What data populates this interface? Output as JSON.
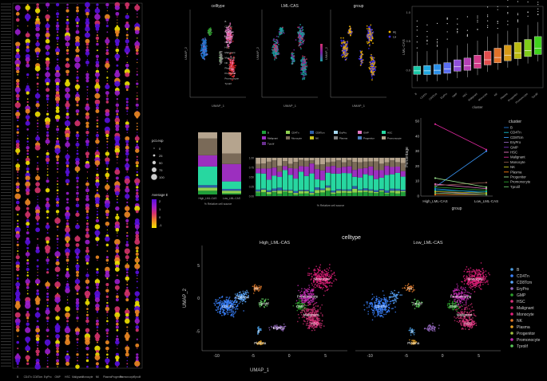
{
  "palette": {
    "background": "#000000",
    "cluster_colors": [
      "#1f77d4",
      "#17becf",
      "#3b83ff",
      "#9467bd",
      "#2ca02c",
      "#8c564b",
      "#e377c2",
      "#7f7f7f",
      "#c7c31f",
      "#d62728",
      "#98df8a",
      "#ff9f1c",
      "#f781bf",
      "#66c2a5"
    ],
    "dot_gradient": [
      "#f2e400",
      "#f08a24",
      "#d6336c",
      "#9b1dcc",
      "#5a0fe0"
    ]
  },
  "clusters": [
    "B",
    "CD4Tn",
    "CD8Tcm",
    "EryPro",
    "GMP",
    "HSC",
    "Malignant",
    "Monocyte",
    "NK",
    "Plasma",
    "Progenitor",
    "Promonocyte",
    "Tprolif"
  ],
  "dotplot": {
    "x_labels": [
      "B",
      "CD4Tn",
      "CD8Tcm",
      "EryPro",
      "GMP",
      "HSC",
      "Malignant",
      "Monocyte",
      "NK",
      "Plasma",
      "Progenitor",
      "Promonocyte",
      "Tprolif"
    ],
    "legend_size_title": "pct.exp",
    "size_levels": [
      "0",
      "25",
      "50",
      "75",
      "100"
    ],
    "legend_color_title": "Average Expression",
    "color_levels": [
      "2",
      "1",
      "0",
      "-1"
    ]
  },
  "umap_small": {
    "titles": [
      "celltype",
      "LML-CAS",
      "group"
    ],
    "xlabel": "UMAP_1",
    "ylabel": "UMAP_2",
    "group_legend": [
      "High_LML-CAS",
      "Low_LML-CAS"
    ]
  },
  "chart_data": [
    {
      "type": "box",
      "title": "",
      "ylabel": "LML-CAS",
      "xlabel": "cluster",
      "ylim": [
        -0.3,
        1.1
      ],
      "yticks": [
        "1.0",
        "0.5",
        "0.0"
      ],
      "categories": [
        "B",
        "CD4Tn",
        "CD8Tcm",
        "EryPro",
        "GMP",
        "HSC",
        "Malignant",
        "Monocyte",
        "NK",
        "Plasma",
        "Progenitor",
        "Promonocyte",
        "Tprolif"
      ],
      "medians": [
        -0.01,
        -0.01,
        0.0,
        0.02,
        0.06,
        0.08,
        0.12,
        0.18,
        0.22,
        0.26,
        0.3,
        0.34,
        0.38
      ]
    },
    {
      "type": "bar",
      "subtype": "stacked_percent",
      "xlabel": "% Relative cell source",
      "categories": [
        "High_LML-CAS",
        "Low_LML-CAS"
      ],
      "series": [
        {
          "name": "B",
          "values": [
            6,
            2
          ]
        },
        {
          "name": "CD4Tn",
          "values": [
            5,
            4
          ]
        },
        {
          "name": "CD8Tcm",
          "values": [
            4,
            3
          ]
        },
        {
          "name": "HSC",
          "values": [
            30,
            12
          ]
        },
        {
          "name": "Malignant",
          "values": [
            18,
            28
          ]
        },
        {
          "name": "Monocyte",
          "values": [
            27,
            17
          ]
        },
        {
          "name": "Promonocyte",
          "values": [
            10,
            34
          ]
        }
      ]
    },
    {
      "type": "bar",
      "subtype": "stacked_percent",
      "xlabel": "% Relative cell source",
      "yticks": [
        "1.00",
        "0.75",
        "0.50",
        "0.25",
        "0.00"
      ],
      "legend": [
        "B",
        "CD4Tn",
        "CD8Tcm",
        "EryPro",
        "GMP",
        "HSC",
        "Malignant",
        "Monocyte",
        "NK",
        "Plasma",
        "Progenitor",
        "Promonocyte",
        "Tprolif"
      ],
      "sample_count": 28
    },
    {
      "type": "line",
      "ylabel": "Percentage",
      "xlabel": "group",
      "legend_title": "cluster",
      "categories": [
        "High_LML-CAS",
        "Low_LML-CAS"
      ],
      "ylim": [
        0,
        50
      ],
      "yticks": [
        0,
        10,
        20,
        30,
        40,
        50
      ],
      "series": [
        {
          "name": "B",
          "values": [
            5,
            2
          ]
        },
        {
          "name": "CD4Tn",
          "values": [
            4,
            3
          ]
        },
        {
          "name": "CD8Tcm",
          "values": [
            6,
            30
          ]
        },
        {
          "name": "EryPro",
          "values": [
            3,
            1
          ]
        },
        {
          "name": "GMP",
          "values": [
            2,
            1
          ]
        },
        {
          "name": "HSC",
          "values": [
            8,
            5
          ]
        },
        {
          "name": "Malignant",
          "values": [
            48,
            31
          ]
        },
        {
          "name": "Monocyte",
          "values": [
            7,
            9
          ]
        },
        {
          "name": "NK",
          "values": [
            3,
            2
          ]
        },
        {
          "name": "Plasma",
          "values": [
            1,
            1
          ]
        },
        {
          "name": "Progenitor",
          "values": [
            12,
            6
          ]
        },
        {
          "name": "Promonocyte",
          "values": [
            6,
            4
          ]
        },
        {
          "name": "Tprolif",
          "values": [
            2,
            1
          ]
        }
      ]
    },
    {
      "type": "scatter",
      "subtype": "umap_split",
      "title": "celltype",
      "facets": [
        "High_LML-CAS",
        "Low_LML-CAS"
      ],
      "xlabel": "UMAP_1",
      "ylabel": "UMAP_2",
      "xticks": [
        -10,
        -5,
        0,
        5
      ],
      "yticks": [
        5,
        0,
        -5
      ],
      "labels_high": [
        "Monocyte",
        "CD4Tn",
        "CD8Tcm",
        "NK",
        "Tprolif",
        "Promonocyte",
        "GMP",
        "HSC",
        "Malignant",
        "B",
        "EryPro",
        "Plasma"
      ],
      "labels_low": [
        "Monocyte",
        "NK",
        "CD4Tn",
        "Tprolif",
        "Promonocyte",
        "GMP",
        "HSC",
        "Malignant",
        "B",
        "Plasma"
      ],
      "legend": [
        "B",
        "CD4Tn",
        "CD8Tcm",
        "EryPro",
        "GMP",
        "HSC",
        "Malignant",
        "Monocyte",
        "NK",
        "Plasma",
        "Progenitor",
        "Promonocyte",
        "Tprolif"
      ]
    }
  ]
}
